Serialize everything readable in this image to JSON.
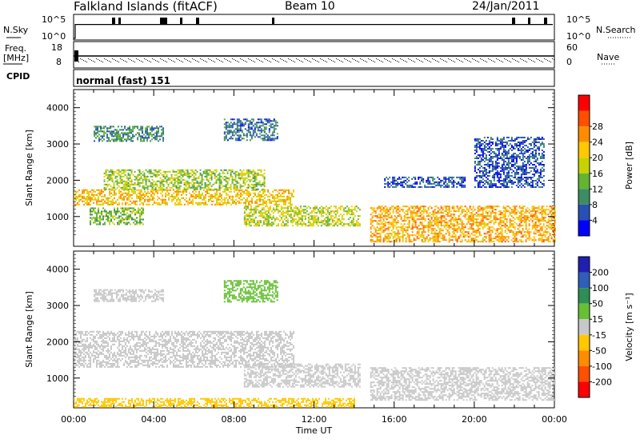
{
  "header": {
    "station": "Falkland Islands (fitACF)",
    "beam": "Beam 10",
    "date": "24/Jan/2011"
  },
  "panels": {
    "nsky": {
      "label": "N.Sky",
      "ticks": [
        "10^5",
        "10^0"
      ]
    },
    "nsearch": {
      "label": "N.Search",
      "ticks": [
        "10^5",
        "10^0"
      ]
    },
    "freq": {
      "label_top": "Freq.",
      "label_unit": "[MHz]",
      "ticks": [
        "18",
        "8"
      ]
    },
    "nave": {
      "label": "Nave",
      "ticks": [
        "60",
        "0"
      ]
    },
    "cpid": {
      "label": "CPID",
      "value": "normal (fast) 151"
    }
  },
  "colors": {
    "power": [
      "#0000ff",
      "#2850b4",
      "#3c8c64",
      "#64b432",
      "#c8d200",
      "#ffc800",
      "#ff8c00",
      "#ff5000",
      "#ff0000"
    ],
    "velocity": [
      "#2020b0",
      "#2f5fb8",
      "#2e8e55",
      "#66c033",
      "#c8c8c8",
      "#ffc800",
      "#ff8c00",
      "#ff5000",
      "#ff0000"
    ]
  },
  "chart_data": [
    {
      "type": "heatmap",
      "title": "",
      "ylabel": "Slant Range [km]",
      "xlabel": "",
      "xlim": [
        "00:00",
        "24:00"
      ],
      "ylim": [
        180,
        4500
      ],
      "yticks": [
        "1000",
        "2000",
        "3000",
        "4000"
      ],
      "colorbar": {
        "label": "Power [dB]",
        "ticks": [
          "4",
          "8",
          "12",
          "16",
          "20",
          "24",
          "28"
        ]
      },
      "regions": [
        {
          "t0": 0.0,
          "t1": 11.0,
          "r0": 1350,
          "r1": 1750,
          "value": 22
        },
        {
          "t0": 1.5,
          "t1": 9.5,
          "r0": 1750,
          "r1": 2300,
          "value": 16
        },
        {
          "t0": 8.5,
          "t1": 14.3,
          "r0": 750,
          "r1": 1300,
          "value": 18
        },
        {
          "t0": 0.8,
          "t1": 3.5,
          "r0": 800,
          "r1": 1250,
          "value": 14
        },
        {
          "t0": 1.0,
          "t1": 4.5,
          "r0": 3100,
          "r1": 3500,
          "value": 10
        },
        {
          "t0": 7.5,
          "t1": 10.2,
          "r0": 3100,
          "r1": 3700,
          "value": 8
        },
        {
          "t0": 14.8,
          "t1": 24.0,
          "r0": 300,
          "r1": 1300,
          "value": 24
        },
        {
          "t0": 15.5,
          "t1": 19.5,
          "r0": 1800,
          "r1": 2100,
          "value": 6
        },
        {
          "t0": 20.0,
          "t1": 23.5,
          "r0": 1800,
          "r1": 3200,
          "value": 6
        }
      ]
    },
    {
      "type": "heatmap",
      "title": "",
      "ylabel": "Slant Range [km]",
      "xlabel": "Time UT",
      "xlim": [
        "00:00",
        "24:00"
      ],
      "ylim": [
        180,
        4500
      ],
      "xticks": [
        "00:00",
        "04:00",
        "08:00",
        "12:00",
        "16:00",
        "20:00",
        "00:00"
      ],
      "yticks": [
        "1000",
        "2000",
        "3000",
        "4000"
      ],
      "colorbar": {
        "label": "Velocity [m s⁻¹]",
        "ticks": [
          "200",
          "100",
          "50",
          "15",
          "-15",
          "-50",
          "-100",
          "-200"
        ]
      },
      "regions": [
        {
          "t0": 0.0,
          "t1": 11.0,
          "r0": 1300,
          "r1": 2300,
          "value": 0
        },
        {
          "t0": 8.5,
          "t1": 14.3,
          "r0": 750,
          "r1": 1400,
          "value": 0
        },
        {
          "t0": 1.0,
          "t1": 4.5,
          "r0": 3100,
          "r1": 3450,
          "value": 10
        },
        {
          "t0": 7.5,
          "t1": 10.2,
          "r0": 3100,
          "r1": 3700,
          "value": 40
        },
        {
          "t0": 14.8,
          "t1": 24.0,
          "r0": 400,
          "r1": 1300,
          "value": 0
        },
        {
          "t0": 0.0,
          "t1": 14.0,
          "r0": 200,
          "r1": 450,
          "value": -40
        }
      ]
    }
  ]
}
